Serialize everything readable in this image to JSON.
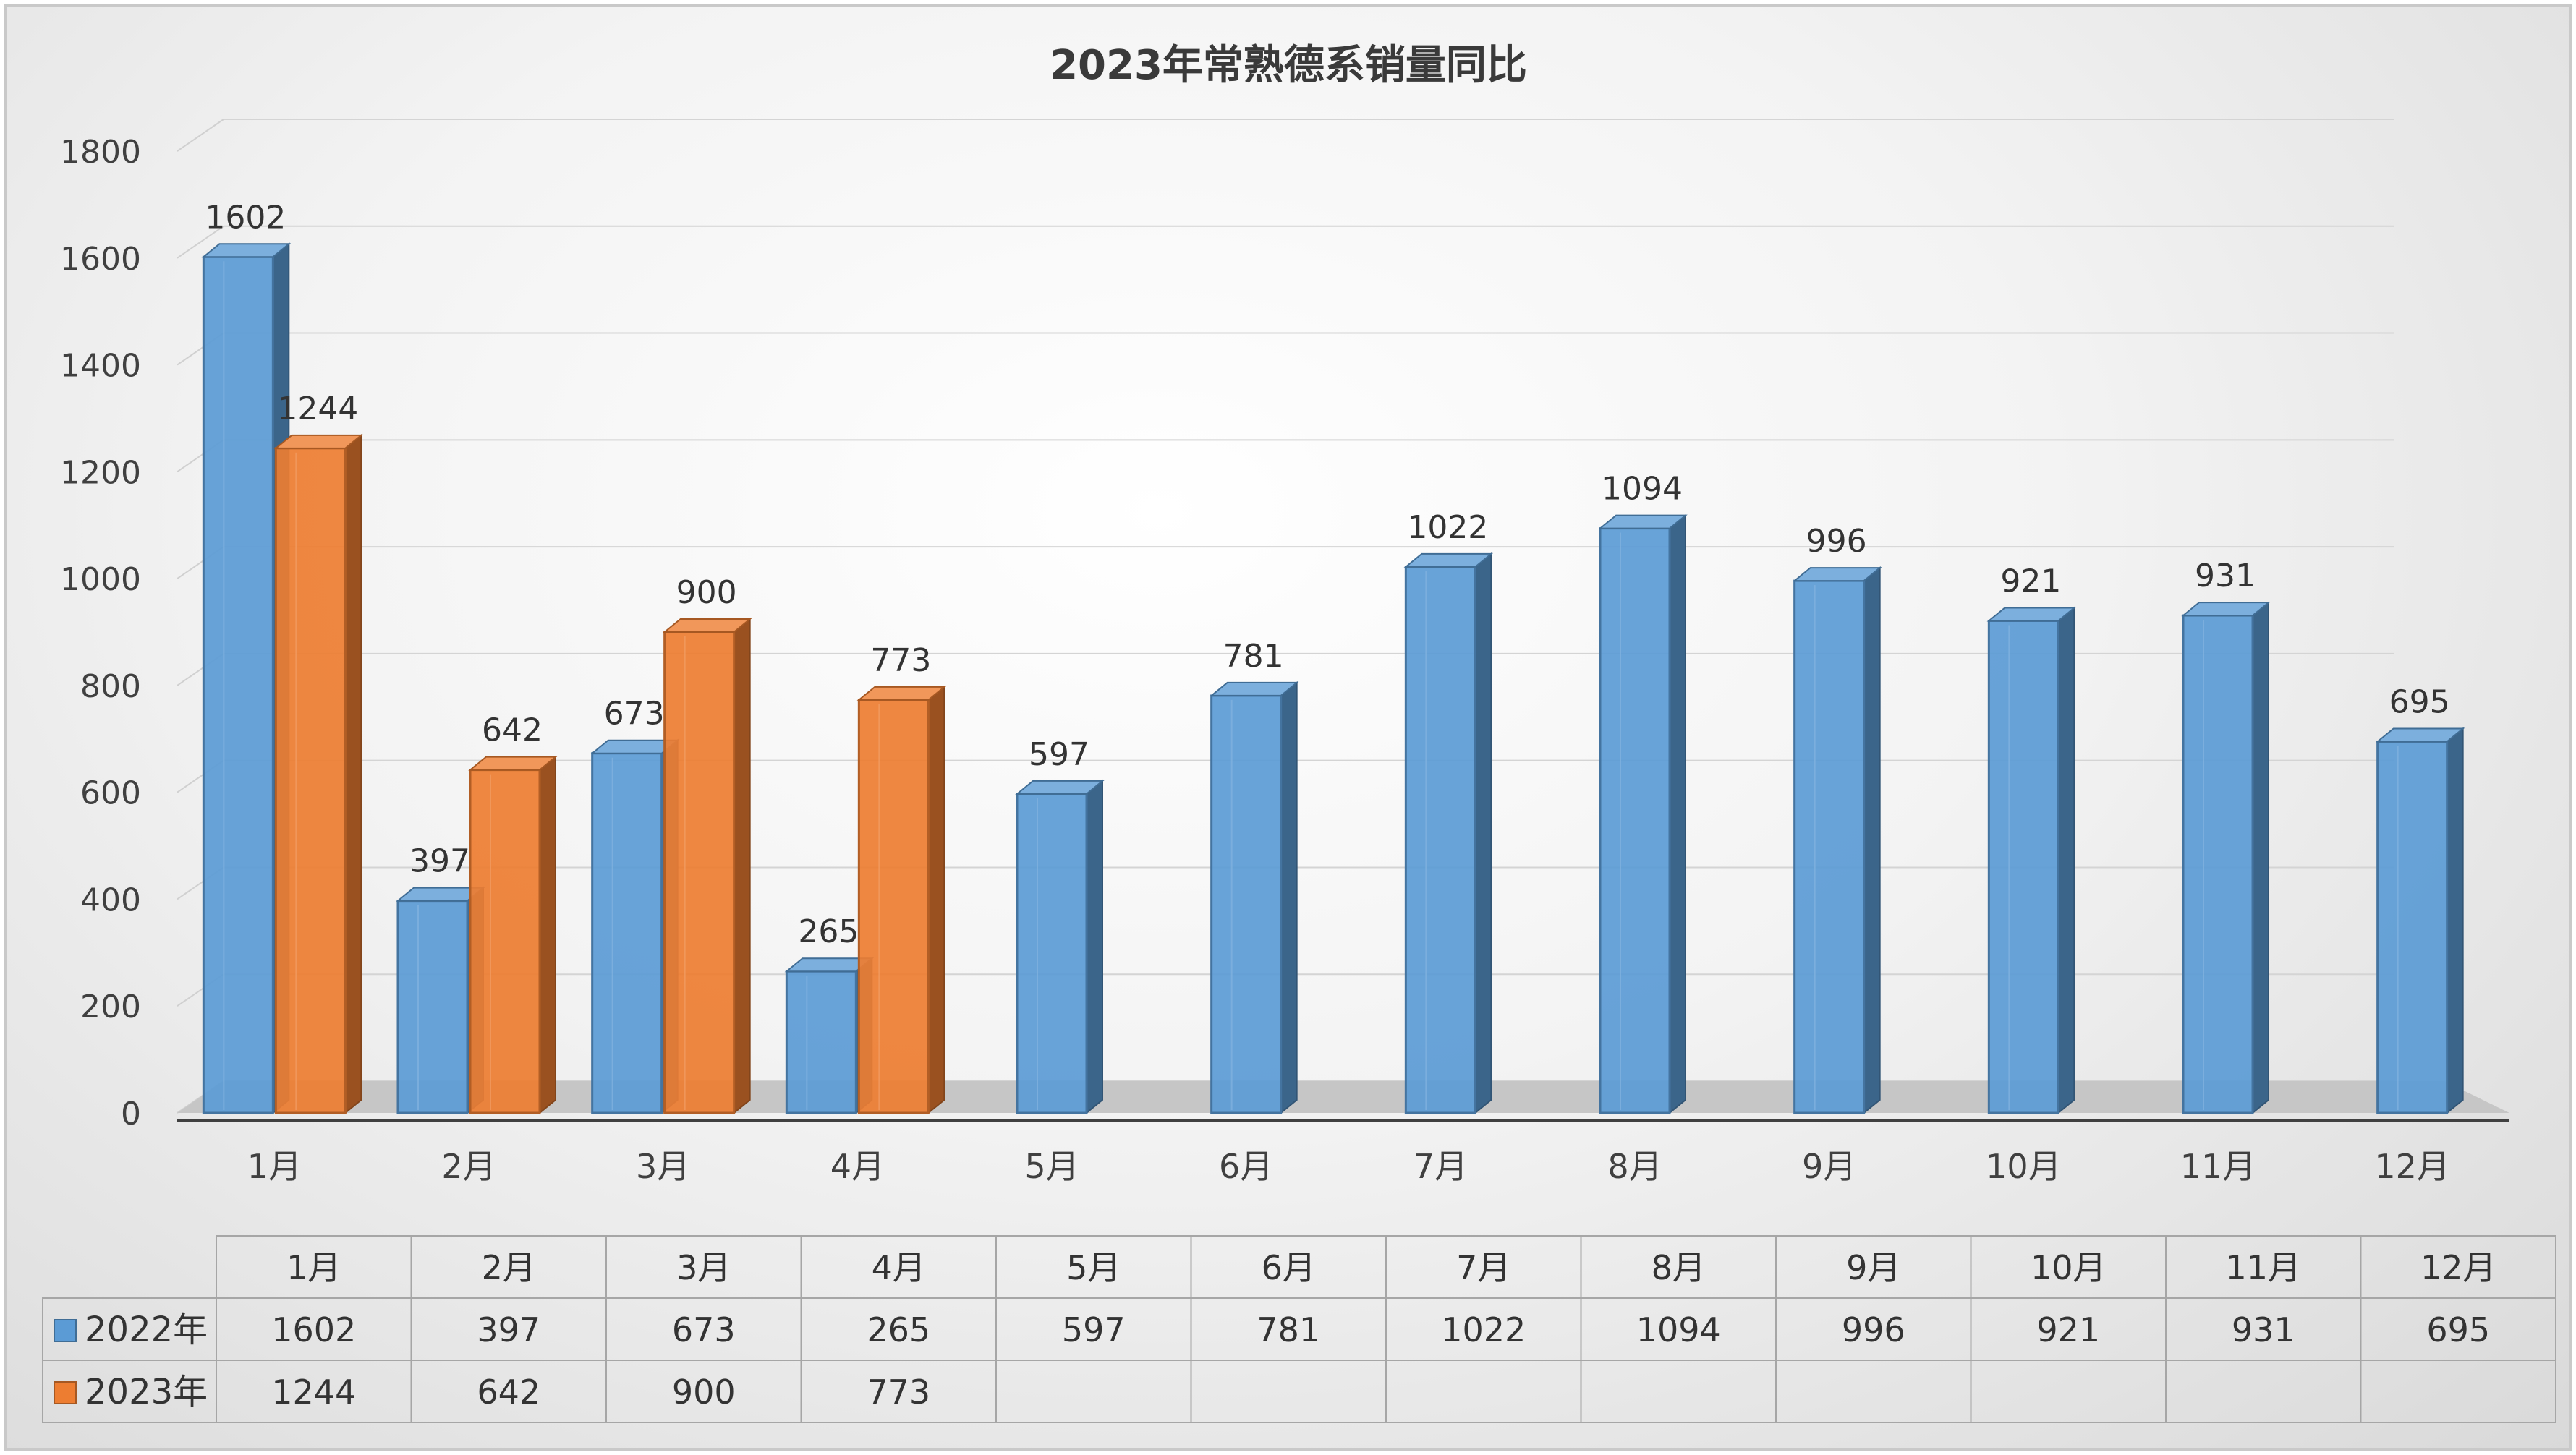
{
  "chart_data": {
    "type": "bar",
    "title": "2023年常熟德系销量同比",
    "categories": [
      "1月",
      "2月",
      "3月",
      "4月",
      "5月",
      "6月",
      "7月",
      "8月",
      "9月",
      "10月",
      "11月",
      "12月"
    ],
    "series": [
      {
        "name": "2022年",
        "color": "#5b9bd5",
        "values": [
          1602,
          397,
          673,
          265,
          597,
          781,
          1022,
          1094,
          996,
          921,
          931,
          695
        ]
      },
      {
        "name": "2023年",
        "color": "#ed7d31",
        "values": [
          1244,
          642,
          900,
          773,
          null,
          null,
          null,
          null,
          null,
          null,
          null,
          null
        ]
      }
    ],
    "ylim": [
      0,
      1800
    ],
    "yticks": [
      0,
      200,
      400,
      600,
      800,
      1000,
      1200,
      1400,
      1600,
      1800
    ],
    "grid": true,
    "style": "3d-clustered-column",
    "data_table": true
  }
}
